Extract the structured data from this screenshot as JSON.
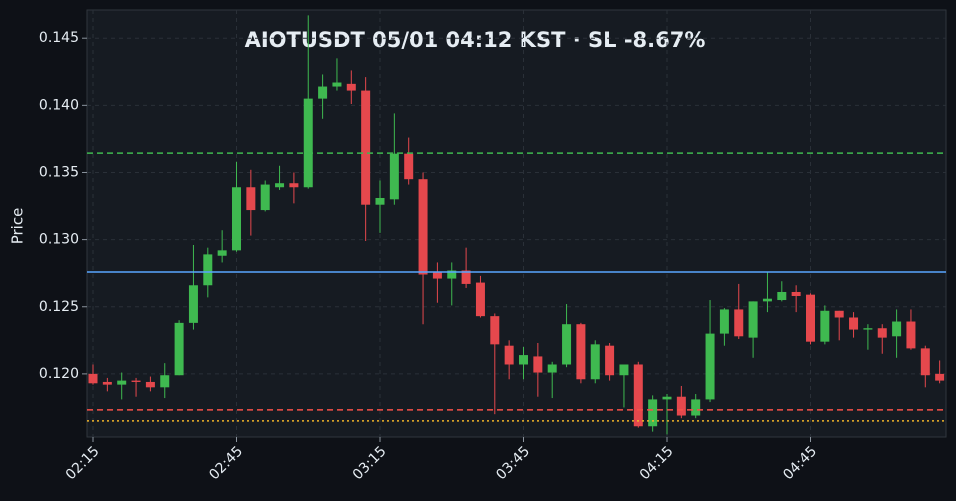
{
  "chart_data": {
    "type": "candlestick",
    "title": "AIOTUSDT  05/01 04:12 KST  ·  SL -8.67%",
    "ylabel": "Price",
    "categories": [
      "02:15",
      null,
      null,
      null,
      null,
      null,
      null,
      null,
      null,
      null,
      "02:45",
      null,
      null,
      null,
      null,
      null,
      null,
      null,
      null,
      null,
      "03:15",
      null,
      null,
      null,
      null,
      null,
      null,
      null,
      null,
      null,
      "03:45",
      null,
      null,
      null,
      null,
      null,
      null,
      null,
      null,
      null,
      "04:15",
      null,
      null,
      null,
      null,
      null,
      null,
      null,
      null,
      null,
      "04:45",
      null,
      null,
      null,
      null,
      null,
      null,
      null,
      null,
      null
    ],
    "open": [
      0.12,
      0.1194,
      0.1192,
      0.1195,
      0.1194,
      0.119,
      0.1199,
      0.1238,
      0.1266,
      0.1288,
      0.1292,
      0.1339,
      0.1322,
      0.1339,
      0.1342,
      0.1339,
      0.1405,
      0.1414,
      0.1416,
      0.1411,
      0.1326,
      0.133,
      0.1364,
      0.1345,
      0.1276,
      0.1271,
      0.1277,
      0.1268,
      0.1243,
      0.1221,
      0.1207,
      0.1213,
      0.1201,
      0.1207,
      0.1237,
      0.1196,
      0.1221,
      0.1199,
      0.1207,
      0.1161,
      0.1181,
      0.1183,
      0.1169,
      0.1181,
      0.123,
      0.1248,
      0.1227,
      0.1254,
      0.1255,
      0.1261,
      0.1259,
      0.1224,
      0.1247,
      0.1242,
      0.1233,
      0.1234,
      0.1228,
      0.1239,
      0.1219,
      0.12
    ],
    "high": [
      0.1207,
      0.1197,
      0.1201,
      0.1197,
      0.1198,
      0.1208,
      0.124,
      0.1296,
      0.1294,
      0.1307,
      0.1358,
      0.1352,
      0.1344,
      0.1355,
      0.135,
      0.1467,
      0.1423,
      0.1435,
      0.1426,
      0.1421,
      0.1344,
      0.1394,
      0.1376,
      0.135,
      0.1283,
      0.1283,
      0.1294,
      0.1273,
      0.1245,
      0.1225,
      0.122,
      0.1223,
      0.1209,
      0.1252,
      0.1238,
      0.1225,
      0.1223,
      0.1207,
      0.1209,
      0.1184,
      0.1185,
      0.1191,
      0.1185,
      0.1255,
      0.1249,
      0.1267,
      0.1254,
      0.1276,
      0.1269,
      0.1266,
      0.126,
      0.1251,
      0.1247,
      0.1246,
      0.1237,
      0.1237,
      0.1248,
      0.1248,
      0.1221,
      0.121
    ],
    "low": [
      0.1192,
      0.1187,
      0.1181,
      0.1183,
      0.1187,
      0.1182,
      0.1199,
      0.1233,
      0.1257,
      0.1283,
      0.1291,
      0.1303,
      0.1321,
      0.1337,
      0.1327,
      0.1338,
      0.139,
      0.1411,
      0.1401,
      0.1299,
      0.1305,
      0.1326,
      0.1341,
      0.1237,
      0.1253,
      0.1251,
      0.1264,
      0.1242,
      0.117,
      0.1196,
      0.1196,
      0.1183,
      0.1182,
      0.1205,
      0.1193,
      0.1193,
      0.1195,
      0.1175,
      0.116,
      0.1157,
      0.1155,
      0.1167,
      0.1167,
      0.1179,
      0.1221,
      0.1226,
      0.1212,
      0.1246,
      0.1254,
      0.1246,
      0.1222,
      0.1222,
      0.1225,
      0.1227,
      0.1218,
      0.1215,
      0.1212,
      0.1218,
      0.119,
      0.1193
    ],
    "close": [
      0.1193,
      0.1192,
      0.1195,
      0.1194,
      0.119,
      0.1199,
      0.1238,
      0.1266,
      0.1289,
      0.1292,
      0.1339,
      0.1322,
      0.1341,
      0.1342,
      0.1339,
      0.1405,
      0.1414,
      0.1417,
      0.1411,
      0.1326,
      0.1331,
      0.1364,
      0.1345,
      0.1274,
      0.1271,
      0.1277,
      0.1267,
      0.1243,
      0.1222,
      0.1207,
      0.1214,
      0.1201,
      0.1207,
      0.1237,
      0.1196,
      0.1222,
      0.1199,
      0.1207,
      0.1161,
      0.1181,
      0.1183,
      0.1169,
      0.1181,
      0.123,
      0.1248,
      0.1228,
      0.1254,
      0.1256,
      0.1261,
      0.1258,
      0.1224,
      0.1247,
      0.1242,
      0.1233,
      0.1234,
      0.1227,
      0.1239,
      0.1219,
      0.1199,
      0.1195
    ],
    "up_color": "#3fb950",
    "down_color": "#e5484d",
    "ylim": [
      0.1153,
      0.1471
    ],
    "yticks": [
      {
        "value": 0.12,
        "label": "0.120"
      },
      0.125,
      {
        "value": 0.13,
        "label": "0.130"
      },
      0.135,
      {
        "value": 0.14,
        "label": "0.140"
      },
      0.145
    ],
    "grid": true,
    "hlines": [
      {
        "value": 0.13644,
        "color": "#3fb950",
        "style": "dashed"
      },
      {
        "value": 0.12759,
        "color": "#58a6ff",
        "style": "solid"
      },
      {
        "value": 0.11732,
        "color": "#f85149",
        "style": "dashed"
      },
      {
        "value": 0.1165,
        "color": "#f0b429",
        "style": "dotted"
      }
    ]
  }
}
